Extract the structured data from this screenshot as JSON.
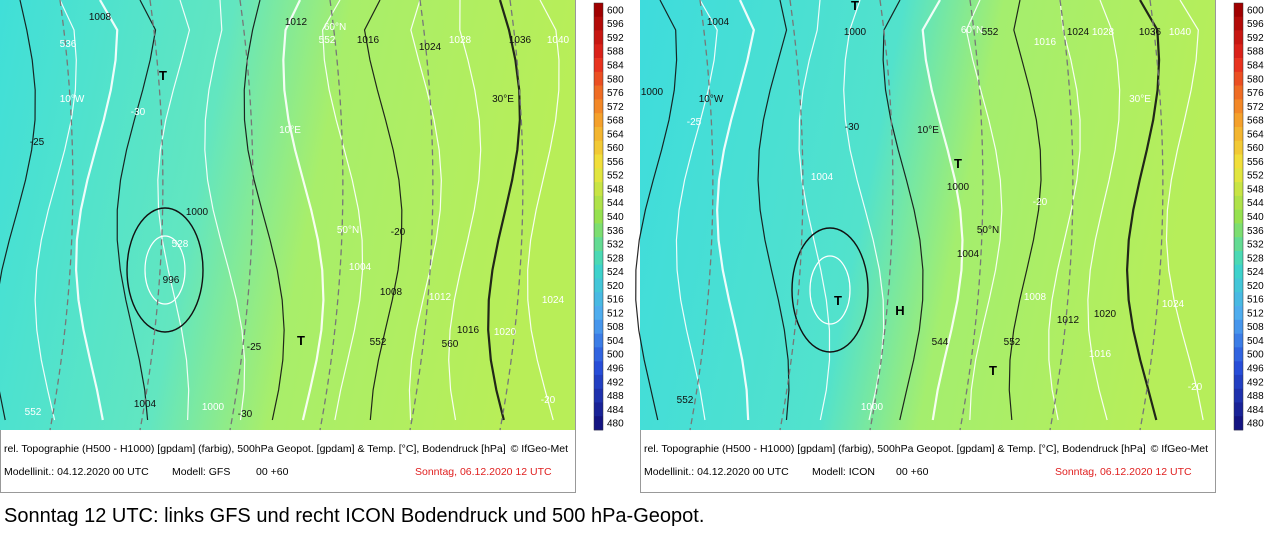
{
  "panels": [
    {
      "legend": "rel. Topographie (H500 - H1000) [gpdam] (farbig), 500hPa Geopot. [gpdam] & Temp. [°C], Bodendruck [hPa]",
      "copyright": "© IfGeo-Met",
      "init": "Modellinit.: 04.12.2020 00 UTC",
      "model": "Modell: GFS",
      "step": "00 +60",
      "valid": "Sonntag, 06.12.2020 12 UTC",
      "colorbar": [
        600,
        596,
        592,
        588,
        584,
        580,
        576,
        572,
        568,
        564,
        560,
        556,
        552,
        548,
        544,
        540,
        536,
        532,
        528,
        524,
        520,
        516,
        512,
        508,
        504,
        500,
        496,
        492,
        488,
        484,
        480
      ],
      "map_labels": [
        "1008",
        "536",
        "1012",
        "60°N",
        "1016",
        "552",
        "1024",
        "1028",
        "1036",
        "1040",
        "T",
        "10°W",
        "30°E",
        "10°E",
        "-25",
        "-30",
        "1000",
        "50°N",
        "-20",
        "528",
        "996",
        "1004",
        "1008",
        "1012",
        "1016",
        "1020",
        "552",
        "T",
        "-25",
        "1024",
        "560",
        "1000",
        "-30",
        "552",
        "1004",
        "-20"
      ]
    },
    {
      "legend": "rel. Topographie (H500 - H1000) [gpdam] (farbig), 500hPa Geopot. [gpdam] & Temp. [°C], Bodendruck [hPa]",
      "copyright": "© IfGeo-Met",
      "init": "Modellinit.: 04.12.2020 00 UTC",
      "model": "Modell: ICON",
      "step": "00 +60",
      "valid": "Sonntag, 06.12.2020 12 UTC",
      "colorbar": [
        600,
        596,
        592,
        588,
        584,
        580,
        576,
        572,
        568,
        564,
        560,
        556,
        552,
        548,
        544,
        540,
        536,
        532,
        528,
        524,
        520,
        516,
        512,
        508,
        504,
        500,
        496,
        492,
        488,
        484,
        480
      ],
      "map_labels": [
        "1004",
        "T",
        "1000",
        "60°N",
        "552",
        "1016",
        "1024",
        "1028",
        "1036",
        "1040",
        "10°W",
        "30°E",
        "10°E",
        "-25",
        "-30",
        "T",
        "1000",
        "1004",
        "50°N",
        "-20",
        "T",
        "H",
        "1004",
        "1008",
        "1012",
        "1016",
        "1020",
        "1024",
        "552",
        "T",
        "544",
        "1000",
        "552",
        "-20",
        "1000"
      ]
    }
  ],
  "caption": "Sonntag 12 UTC: links GFS und recht ICON Bodendruck und 500 hPa-Geopot."
}
